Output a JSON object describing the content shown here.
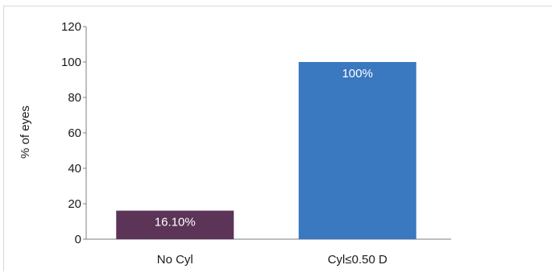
{
  "chart_data": {
    "type": "bar",
    "categories": [
      "No Cyl",
      "Cyl≤0.50 D"
    ],
    "values": [
      16.1,
      100
    ],
    "data_labels": [
      "16.10%",
      "100%"
    ],
    "colors": [
      "#5b3458",
      "#3a78bf"
    ],
    "title": "",
    "xlabel": "",
    "ylabel": "% of eyes",
    "ylim": [
      0,
      120
    ],
    "yticks": [
      0,
      20,
      40,
      60,
      80,
      100,
      120
    ],
    "grid": false,
    "legend": "none"
  }
}
